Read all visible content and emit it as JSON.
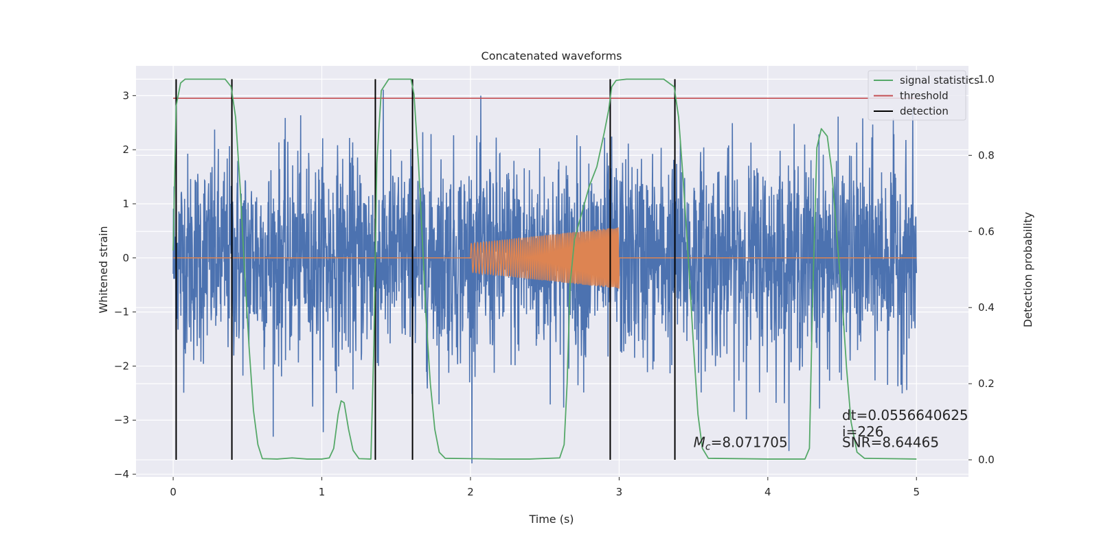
{
  "chart_data": {
    "type": "line",
    "title": "Concatenated waveforms",
    "xlabel": "Time (s)",
    "ylabel": "Whitened strain",
    "y2label": "Detection probability",
    "xlim": [
      -0.25,
      5.35
    ],
    "ylim": [
      -4.05,
      3.55
    ],
    "y2lim": [
      -0.045,
      1.035
    ],
    "x_ticks": [
      0,
      1,
      2,
      3,
      4,
      5
    ],
    "x_tick_labels": [
      "0",
      "1",
      "2",
      "3",
      "4",
      "5"
    ],
    "y_ticks": [
      3,
      2,
      1,
      0,
      -1,
      -2,
      -3,
      -4
    ],
    "y_tick_labels": [
      "3",
      "2",
      "1",
      "0",
      "−1",
      "−2",
      "−3",
      "−4"
    ],
    "y2_ticks": [
      1.0,
      0.8,
      0.6,
      0.4,
      0.2,
      0.0
    ],
    "y2_tick_labels": [
      "1.0",
      "0.8",
      "0.6",
      "0.4",
      "0.2",
      "0.0"
    ],
    "grid": true,
    "legend_position": "top-right",
    "colors": {
      "strain": "#4c72b0",
      "template": "#dd8452",
      "statistics": "#55a868",
      "threshold": "#c44e52",
      "detection": "#000000",
      "axes_bg": "#eaeaf2",
      "grid": "#ffffff"
    },
    "strain": {
      "x_start": 0,
      "x_end": 5,
      "typical_range": [
        -2.5,
        2.5
      ],
      "extreme_range": [
        -3.8,
        3.2
      ],
      "note_style": "noise"
    },
    "template": {
      "flat_range": [
        0,
        5
      ],
      "chirp_start": 2.0,
      "chirp_end": 3.0,
      "amp_start": 0.27,
      "amp_end": 0.57
    },
    "series": [
      {
        "name": "signal statistics",
        "axis": "right",
        "points": [
          [
            0.0,
            0.55
          ],
          [
            0.02,
            0.93
          ],
          [
            0.05,
            0.99
          ],
          [
            0.08,
            1.0
          ],
          [
            0.35,
            1.0
          ],
          [
            0.39,
            0.98
          ],
          [
            0.42,
            0.9
          ],
          [
            0.45,
            0.72
          ],
          [
            0.48,
            0.5
          ],
          [
            0.51,
            0.3
          ],
          [
            0.54,
            0.13
          ],
          [
            0.57,
            0.04
          ],
          [
            0.6,
            0.003
          ],
          [
            0.7,
            0.002
          ],
          [
            0.8,
            0.005
          ],
          [
            0.9,
            0.002
          ],
          [
            1.0,
            0.002
          ],
          [
            1.05,
            0.005
          ],
          [
            1.08,
            0.03
          ],
          [
            1.11,
            0.12
          ],
          [
            1.13,
            0.155
          ],
          [
            1.15,
            0.15
          ],
          [
            1.18,
            0.08
          ],
          [
            1.21,
            0.025
          ],
          [
            1.25,
            0.003
          ],
          [
            1.33,
            0.002
          ],
          [
            1.35,
            0.3
          ],
          [
            1.37,
            0.78
          ],
          [
            1.4,
            0.97
          ],
          [
            1.45,
            1.0
          ],
          [
            1.6,
            1.0
          ],
          [
            1.62,
            0.96
          ],
          [
            1.65,
            0.78
          ],
          [
            1.68,
            0.55
          ],
          [
            1.7,
            0.38
          ],
          [
            1.73,
            0.2
          ],
          [
            1.76,
            0.08
          ],
          [
            1.79,
            0.02
          ],
          [
            1.83,
            0.004
          ],
          [
            2.0,
            0.003
          ],
          [
            2.2,
            0.002
          ],
          [
            2.4,
            0.002
          ],
          [
            2.6,
            0.005
          ],
          [
            2.63,
            0.04
          ],
          [
            2.65,
            0.2
          ],
          [
            2.67,
            0.46
          ],
          [
            2.7,
            0.58
          ],
          [
            2.75,
            0.65
          ],
          [
            2.8,
            0.72
          ],
          [
            2.85,
            0.77
          ],
          [
            2.9,
            0.86
          ],
          [
            2.93,
            0.92
          ],
          [
            2.95,
            0.98
          ],
          [
            2.98,
            0.997
          ],
          [
            3.05,
            1.0
          ],
          [
            3.3,
            1.0
          ],
          [
            3.37,
            0.98
          ],
          [
            3.4,
            0.9
          ],
          [
            3.43,
            0.74
          ],
          [
            3.47,
            0.5
          ],
          [
            3.5,
            0.3
          ],
          [
            3.53,
            0.12
          ],
          [
            3.56,
            0.03
          ],
          [
            3.6,
            0.004
          ],
          [
            4.0,
            0.002
          ],
          [
            4.25,
            0.002
          ],
          [
            4.28,
            0.03
          ],
          [
            4.3,
            0.4
          ],
          [
            4.33,
            0.82
          ],
          [
            4.36,
            0.87
          ],
          [
            4.4,
            0.85
          ],
          [
            4.43,
            0.76
          ],
          [
            4.46,
            0.61
          ],
          [
            4.5,
            0.42
          ],
          [
            4.53,
            0.24
          ],
          [
            4.56,
            0.1
          ],
          [
            4.6,
            0.02
          ],
          [
            4.65,
            0.004
          ],
          [
            5.0,
            0.002
          ]
        ]
      },
      {
        "name": "threshold",
        "axis": "right",
        "value": 0.95,
        "x_range": [
          0,
          5
        ]
      },
      {
        "name": "detection",
        "axis": "right",
        "x": [
          0.02,
          0.395,
          1.36,
          1.61,
          2.94,
          3.375
        ],
        "y_range": [
          0.0,
          1.0
        ]
      }
    ],
    "annotations": [
      {
        "text": "dt=0.0556640625",
        "x": 4.5,
        "y": -3.0
      },
      {
        "text": " i=226",
        "x": 4.5,
        "y": -3.3
      },
      {
        "text": "SNR=8.64465",
        "x": 4.5,
        "y": -3.5
      },
      {
        "text": "=8.071705",
        "prefix_main": "M",
        "prefix_sub": "c",
        "x": 3.5,
        "y": -3.5
      }
    ]
  }
}
